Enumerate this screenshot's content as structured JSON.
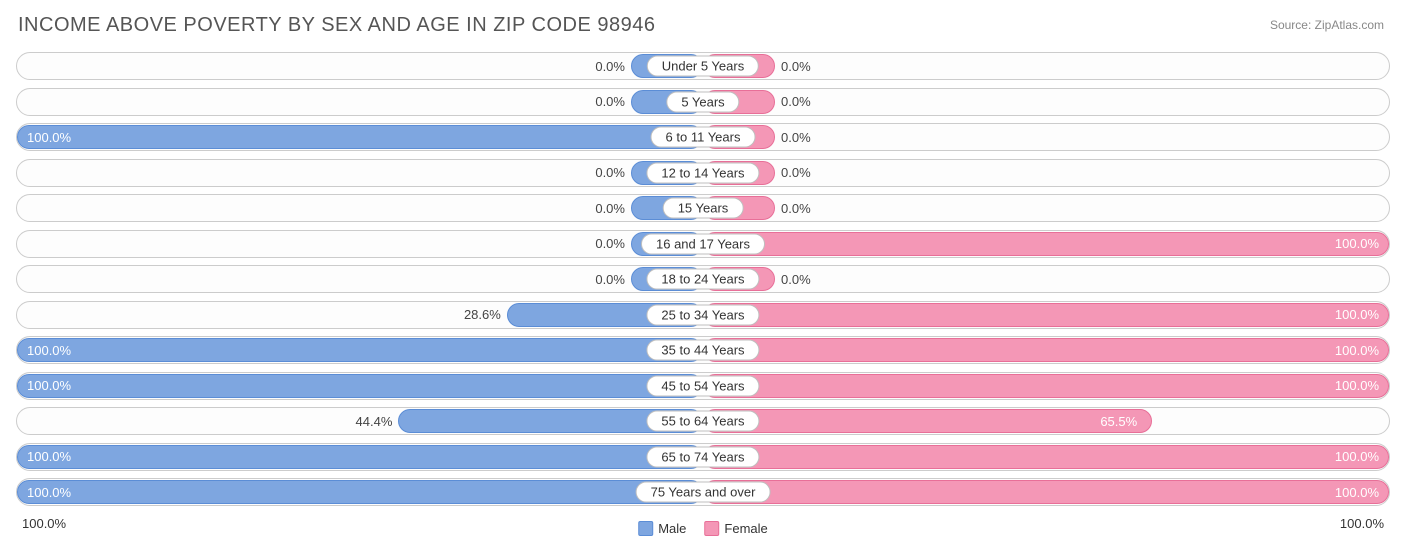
{
  "title": "INCOME ABOVE POVERTY BY SEX AND AGE IN ZIP CODE 98946",
  "source": "Source: ZipAtlas.com",
  "colors": {
    "male_fill": "#7ea6e0",
    "male_border": "#5b8dd6",
    "female_fill": "#f497b6",
    "female_border": "#e86f98",
    "row_border": "#cccccc",
    "text": "#444444",
    "text_light": "#ffffff",
    "title": "#555555",
    "source": "#888888"
  },
  "axis": {
    "left": "100.0%",
    "right": "100.0%"
  },
  "legend": {
    "male": "Male",
    "female": "Female"
  },
  "min_bar_pct": 10.5,
  "rows": [
    {
      "label": "Under 5 Years",
      "male": 0.0,
      "female": 0.0
    },
    {
      "label": "5 Years",
      "male": 0.0,
      "female": 0.0
    },
    {
      "label": "6 to 11 Years",
      "male": 100.0,
      "female": 0.0
    },
    {
      "label": "12 to 14 Years",
      "male": 0.0,
      "female": 0.0
    },
    {
      "label": "15 Years",
      "male": 0.0,
      "female": 0.0
    },
    {
      "label": "16 and 17 Years",
      "male": 0.0,
      "female": 100.0
    },
    {
      "label": "18 to 24 Years",
      "male": 0.0,
      "female": 0.0
    },
    {
      "label": "25 to 34 Years",
      "male": 28.6,
      "female": 100.0
    },
    {
      "label": "35 to 44 Years",
      "male": 100.0,
      "female": 100.0
    },
    {
      "label": "45 to 54 Years",
      "male": 100.0,
      "female": 100.0
    },
    {
      "label": "55 to 64 Years",
      "male": 44.4,
      "female": 65.5
    },
    {
      "label": "65 to 74 Years",
      "male": 100.0,
      "female": 100.0
    },
    {
      "label": "75 Years and over",
      "male": 100.0,
      "female": 100.0
    }
  ]
}
